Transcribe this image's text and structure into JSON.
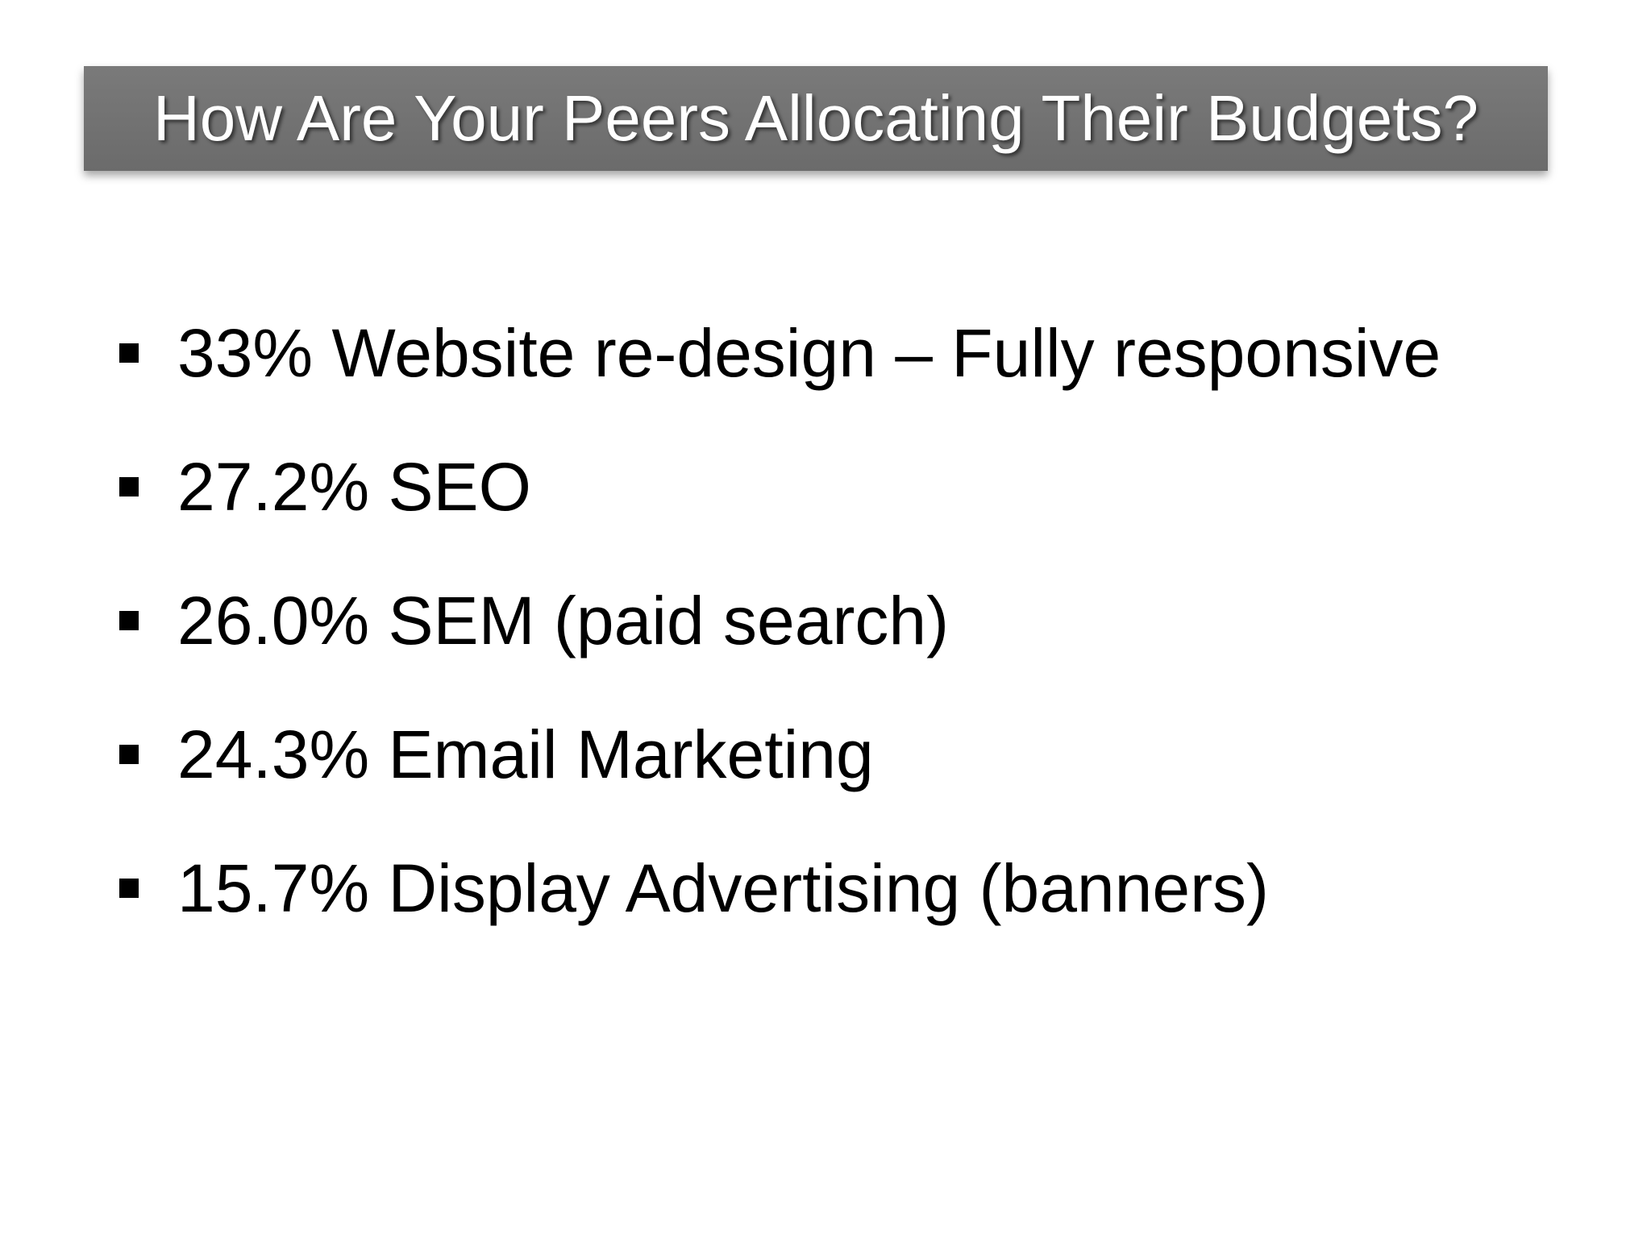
{
  "slide": {
    "title": "How Are Your Peers Allocating Their Budgets?",
    "bullets": [
      "33% Website re-design – Fully responsive",
      "27.2% SEO",
      "26.0% SEM (paid search)",
      "24.3% Email Marketing",
      "15.7% Display Advertising (banners)"
    ]
  },
  "colors": {
    "title_bar": "#707070",
    "title_text": "#ffffff",
    "body_text": "#000000",
    "background": "#ffffff"
  },
  "icons": {
    "bullet": "square-bullet-icon"
  }
}
